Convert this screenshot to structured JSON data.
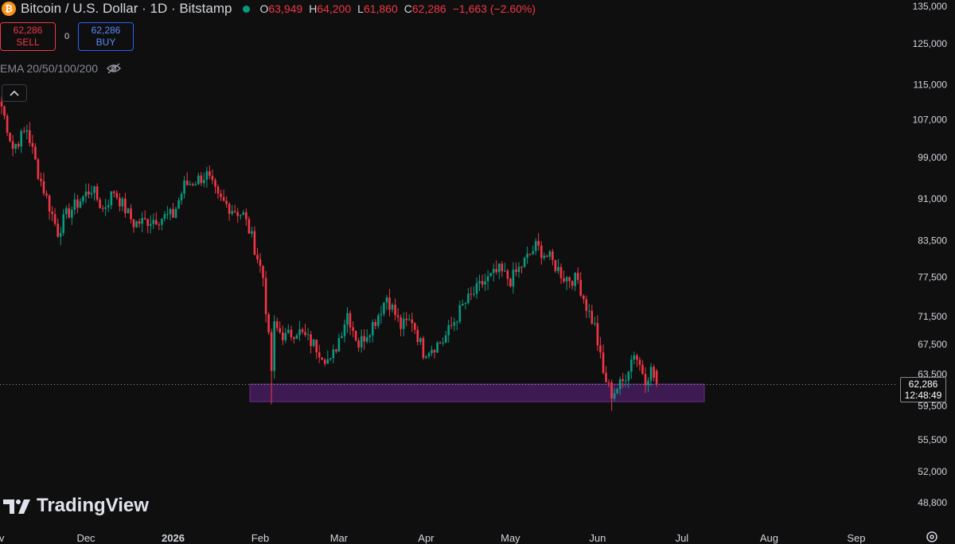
{
  "header": {
    "title": "Bitcoin / U.S. Dollar · 1D · Bitstamp",
    "open_label": "O",
    "open": "63,949",
    "high_label": "H",
    "high": "64,200",
    "low_label": "L",
    "low": "61,860",
    "close_label": "C",
    "close": "62,286",
    "change": "−1,663 (−2.60%)",
    "coin_glyph": "₿"
  },
  "trade": {
    "sell_price": "62,286",
    "sell_label": "SELL",
    "spread": "0",
    "buy_price": "62,286",
    "buy_label": "BUY"
  },
  "indicator": {
    "label": "EMA 20/50/100/200"
  },
  "branding": {
    "logo_text": "TradingView"
  },
  "price_badge": {
    "price": "62,286",
    "countdown": "12:48:49"
  },
  "colors": {
    "up": "#089981",
    "down": "#f23645",
    "zone": "#3d1a52",
    "zone_border": "#6a2c8a",
    "background": "#0f0f0f"
  },
  "icons": {
    "coin": "bitcoin-icon",
    "status": "market-status-dot-icon",
    "visibility": "eye-crossed-icon",
    "collapse": "chevron-up-icon",
    "settings": "settings-icon"
  },
  "chart_data": {
    "type": "candlestick",
    "yaxis_scale": "log",
    "y_ticks": [
      48800,
      52000,
      55500,
      59500,
      63500,
      67500,
      71500,
      77500,
      83500,
      91000,
      99000,
      107000,
      115000,
      125000,
      135000
    ],
    "y_tick_labels": [
      "48,800",
      "52,000",
      "55,500",
      "59,500",
      "63,500",
      "67,500",
      "71,500",
      "77,500",
      "83,500",
      "91,000",
      "99,000",
      "107,000",
      "115,000",
      "125,000",
      "135,000"
    ],
    "x_labels": [
      "ov",
      "Dec",
      "2026",
      "Feb",
      "Mar",
      "Apr",
      "May",
      "Jun",
      "Jul",
      "Aug",
      "Sep"
    ],
    "last_price": 62286,
    "support_zone": [
      59600,
      62100
    ],
    "anchors": [
      {
        "date": "2025-11-01",
        "close": 110000
      },
      {
        "date": "2025-11-05",
        "close": 101000
      },
      {
        "date": "2025-11-10",
        "close": 105000
      },
      {
        "date": "2025-11-14",
        "close": 96000
      },
      {
        "date": "2025-11-21",
        "close": 85000
      },
      {
        "date": "2025-11-24",
        "close": 88000
      },
      {
        "date": "2025-12-03",
        "close": 93000
      },
      {
        "date": "2025-12-07",
        "close": 89000
      },
      {
        "date": "2025-12-11",
        "close": 92500
      },
      {
        "date": "2025-12-18",
        "close": 86500
      },
      {
        "date": "2026-01-01",
        "close": 88000
      },
      {
        "date": "2026-01-05",
        "close": 93500
      },
      {
        "date": "2026-01-13",
        "close": 95500
      },
      {
        "date": "2026-01-17",
        "close": 91000
      },
      {
        "date": "2026-01-21",
        "close": 89500
      },
      {
        "date": "2026-01-26",
        "close": 88000
      },
      {
        "date": "2026-01-29",
        "close": 84000
      },
      {
        "date": "2026-02-02",
        "close": 77500
      },
      {
        "date": "2026-02-05",
        "close": 64000
      },
      {
        "date": "2026-02-06",
        "close": 70000
      },
      {
        "date": "2026-02-10",
        "close": 68500
      },
      {
        "date": "2026-02-14",
        "close": 69500
      },
      {
        "date": "2026-02-20",
        "close": 67500
      },
      {
        "date": "2026-02-26",
        "close": 65000
      },
      {
        "date": "2026-03-04",
        "close": 72000
      },
      {
        "date": "2026-03-08",
        "close": 67500
      },
      {
        "date": "2026-03-14",
        "close": 71000
      },
      {
        "date": "2026-03-18",
        "close": 74500
      },
      {
        "date": "2026-03-23",
        "close": 70000
      },
      {
        "date": "2026-03-27",
        "close": 71000
      },
      {
        "date": "2026-03-31",
        "close": 66500
      },
      {
        "date": "2026-04-07",
        "close": 68000
      },
      {
        "date": "2026-04-14",
        "close": 73000
      },
      {
        "date": "2026-04-21",
        "close": 76500
      },
      {
        "date": "2026-04-27",
        "close": 78500
      },
      {
        "date": "2026-05-01",
        "close": 77000
      },
      {
        "date": "2026-05-06",
        "close": 80000
      },
      {
        "date": "2026-05-10",
        "close": 82500
      },
      {
        "date": "2026-05-15",
        "close": 80500
      },
      {
        "date": "2026-05-20",
        "close": 77500
      },
      {
        "date": "2026-05-25",
        "close": 77000
      },
      {
        "date": "2026-05-28",
        "close": 73000
      },
      {
        "date": "2026-05-31",
        "close": 70000
      },
      {
        "date": "2026-06-03",
        "close": 63500
      },
      {
        "date": "2026-06-06",
        "close": 61000
      },
      {
        "date": "2026-06-10",
        "close": 62500
      },
      {
        "date": "2026-06-14",
        "close": 66500
      },
      {
        "date": "2026-06-18",
        "close": 63000
      },
      {
        "date": "2026-06-20",
        "close": 64000
      },
      {
        "date": "2026-06-22",
        "close": 62286
      }
    ]
  }
}
